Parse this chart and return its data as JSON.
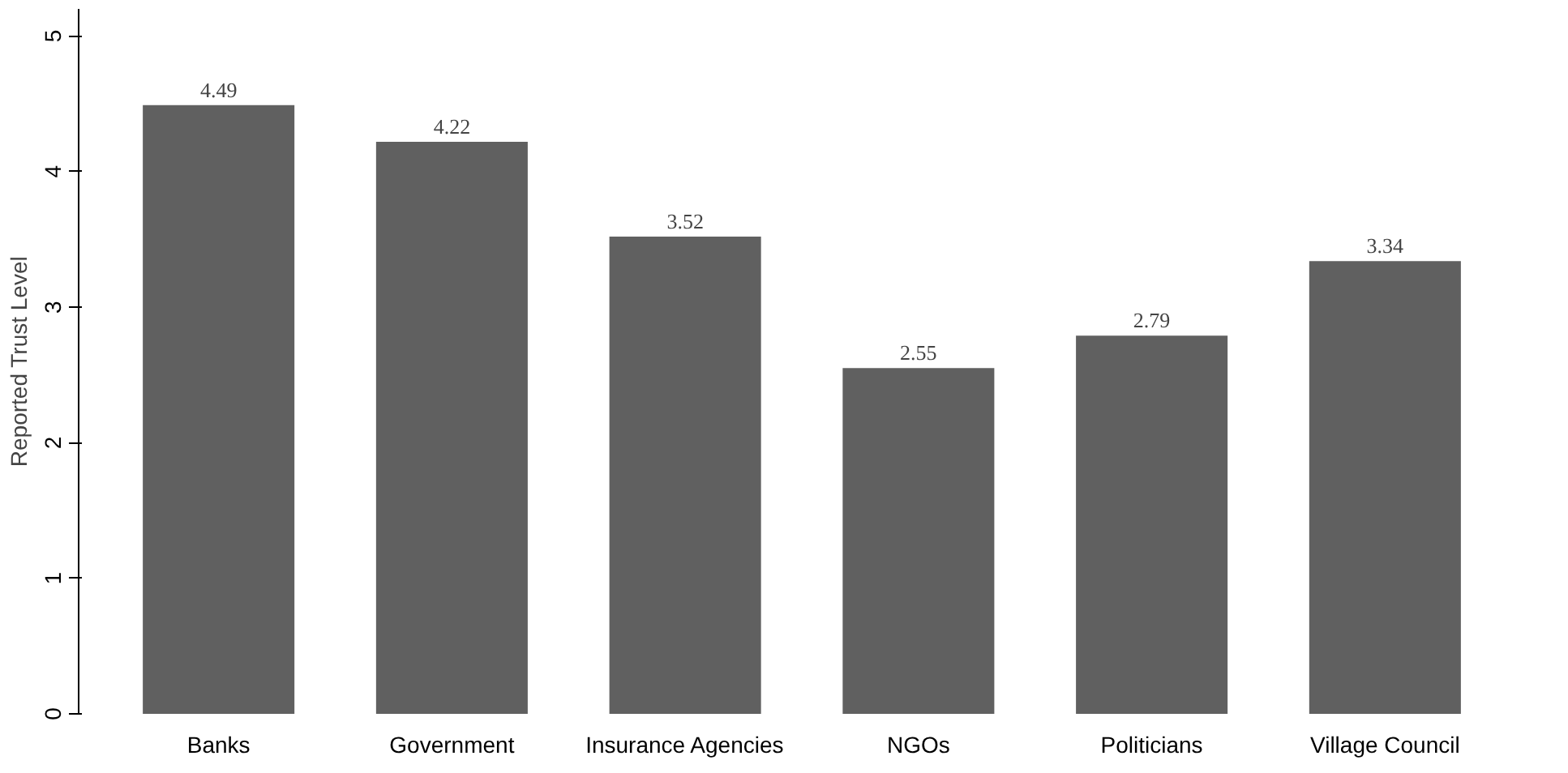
{
  "chart_data": {
    "type": "bar",
    "ylabel": "Reported Trust Level",
    "categories": [
      "Banks",
      "Government",
      "Insurance Agencies",
      "NGOs",
      "Politicians",
      "Village Council"
    ],
    "values": [
      4.49,
      4.22,
      3.52,
      2.55,
      2.79,
      3.34
    ],
    "color": "#606060",
    "ylim": [
      0,
      5.2
    ],
    "yticks": [
      0,
      1,
      2,
      3,
      4,
      5
    ],
    "grid": false,
    "data_labels": true
  }
}
